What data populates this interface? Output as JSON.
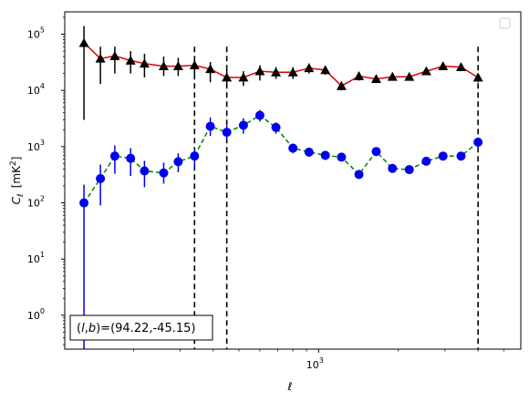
{
  "chart_data": {
    "type": "scatter",
    "title": "",
    "xlabel": "ℓ",
    "ylabel": "C",
    "ylabel_sub": "ℓ",
    "ylabel_unit_prefix": "[mK",
    "ylabel_unit_sup": "2",
    "ylabel_unit_suffix": "]",
    "xscale": "log",
    "yscale": "log",
    "xlim": [
      110,
      5800
    ],
    "ylim": [
      0.25,
      250000
    ],
    "x_tick_label_major": {
      "value": 1000,
      "base": "10",
      "exp": "3"
    },
    "y_ticks": [
      {
        "value": 1,
        "base": "10",
        "exp": "0"
      },
      {
        "value": 10,
        "base": "10",
        "exp": "1"
      },
      {
        "value": 100,
        "base": "10",
        "exp": "2"
      },
      {
        "value": 1000,
        "base": "10",
        "exp": "3"
      },
      {
        "value": 10000,
        "base": "10",
        "exp": "4"
      },
      {
        "value": 100000,
        "base": "10",
        "exp": "5"
      }
    ],
    "grid": false,
    "legend": "top-right (empty)",
    "vlines": [
      340,
      450,
      4000
    ],
    "annotation": {
      "prefix": "(",
      "l": "l",
      "comma": ",",
      "b": "b",
      "value": ")=(94.22,-45.15)"
    },
    "series": [
      {
        "color": "#000000",
        "line_color": "#e00000",
        "line_style": "solid",
        "marker": "triangle",
        "points": [
          {
            "x": 130,
            "y": 70000,
            "lo": 3000,
            "hi": 140000
          },
          {
            "x": 150,
            "y": 37000,
            "lo": 13000,
            "hi": 60000
          },
          {
            "x": 170,
            "y": 41000,
            "lo": 20000,
            "hi": 60000
          },
          {
            "x": 195,
            "y": 34000,
            "lo": 20000,
            "hi": 50000
          },
          {
            "x": 220,
            "y": 30000,
            "lo": 17000,
            "hi": 45000
          },
          {
            "x": 260,
            "y": 27000,
            "lo": 18000,
            "hi": 40000
          },
          {
            "x": 295,
            "y": 27000,
            "lo": 18000,
            "hi": 38000
          },
          {
            "x": 340,
            "y": 28000,
            "lo": 19000,
            "hi": 37000
          },
          {
            "x": 390,
            "y": 24000,
            "lo": 14000,
            "hi": 32000
          },
          {
            "x": 450,
            "y": 17000,
            "lo": 12000,
            "hi": 23000
          },
          {
            "x": 520,
            "y": 17000,
            "lo": 12000,
            "hi": 22000
          },
          {
            "x": 600,
            "y": 22000,
            "lo": 15000,
            "hi": 28000
          },
          {
            "x": 690,
            "y": 21000,
            "lo": 16000,
            "hi": 26000
          },
          {
            "x": 800,
            "y": 21000,
            "lo": 16000,
            "hi": 26000
          },
          {
            "x": 920,
            "y": 25000,
            "lo": 20000,
            "hi": 30000
          },
          {
            "x": 1060,
            "y": 23000,
            "lo": 19000,
            "hi": 27000
          },
          {
            "x": 1220,
            "y": 12000,
            "lo": 10000,
            "hi": 14500
          },
          {
            "x": 1420,
            "y": 18000,
            "lo": 15000,
            "hi": 21000
          },
          {
            "x": 1650,
            "y": 16000,
            "lo": 13500,
            "hi": 18500
          },
          {
            "x": 1900,
            "y": 17500,
            "lo": 15000,
            "hi": 20000
          },
          {
            "x": 2200,
            "y": 17500,
            "lo": 15000,
            "hi": 20000
          },
          {
            "x": 2550,
            "y": 22000,
            "lo": 19000,
            "hi": 25000
          },
          {
            "x": 2950,
            "y": 27000,
            "lo": 23000,
            "hi": 31000
          },
          {
            "x": 3450,
            "y": 26000,
            "lo": 22000,
            "hi": 30000
          },
          {
            "x": 4000,
            "y": 17000,
            "lo": 14000,
            "hi": 20000
          }
        ]
      },
      {
        "color": "#0000ee",
        "line_color": "#008000",
        "line_style": "dashed",
        "marker": "circle",
        "points": [
          {
            "x": 130,
            "y": 100,
            "lo": 0.25,
            "hi": 210
          },
          {
            "x": 150,
            "y": 270,
            "lo": 90,
            "hi": 480
          },
          {
            "x": 170,
            "y": 680,
            "lo": 330,
            "hi": 1050
          },
          {
            "x": 195,
            "y": 620,
            "lo": 300,
            "hi": 940
          },
          {
            "x": 220,
            "y": 370,
            "lo": 190,
            "hi": 560
          },
          {
            "x": 260,
            "y": 340,
            "lo": 220,
            "hi": 520
          },
          {
            "x": 295,
            "y": 540,
            "lo": 350,
            "hi": 760
          },
          {
            "x": 340,
            "y": 680,
            "lo": 430,
            "hi": 930
          },
          {
            "x": 390,
            "y": 2300,
            "lo": 1550,
            "hi": 3300
          },
          {
            "x": 450,
            "y": 1800,
            "lo": 1300,
            "hi": 2400
          },
          {
            "x": 520,
            "y": 2400,
            "lo": 1700,
            "hi": 3200
          },
          {
            "x": 600,
            "y": 3600,
            "lo": 2800,
            "hi": 4500
          },
          {
            "x": 690,
            "y": 2200,
            "lo": 1700,
            "hi": 2700
          },
          {
            "x": 800,
            "y": 940,
            "lo": 760,
            "hi": 1120
          },
          {
            "x": 920,
            "y": 800,
            "lo": 660,
            "hi": 940
          },
          {
            "x": 1060,
            "y": 700,
            "lo": 580,
            "hi": 820
          },
          {
            "x": 1220,
            "y": 650,
            "lo": 550,
            "hi": 750
          },
          {
            "x": 1420,
            "y": 320,
            "lo": 270,
            "hi": 370
          },
          {
            "x": 1650,
            "y": 820,
            "lo": 720,
            "hi": 920
          },
          {
            "x": 1900,
            "y": 410,
            "lo": 360,
            "hi": 460
          },
          {
            "x": 2200,
            "y": 390,
            "lo": 340,
            "hi": 440
          },
          {
            "x": 2550,
            "y": 550,
            "lo": 490,
            "hi": 610
          },
          {
            "x": 2950,
            "y": 680,
            "lo": 600,
            "hi": 760
          },
          {
            "x": 3450,
            "y": 680,
            "lo": 600,
            "hi": 760
          },
          {
            "x": 4000,
            "y": 1200,
            "lo": 950,
            "hi": 1450
          }
        ]
      }
    ]
  }
}
